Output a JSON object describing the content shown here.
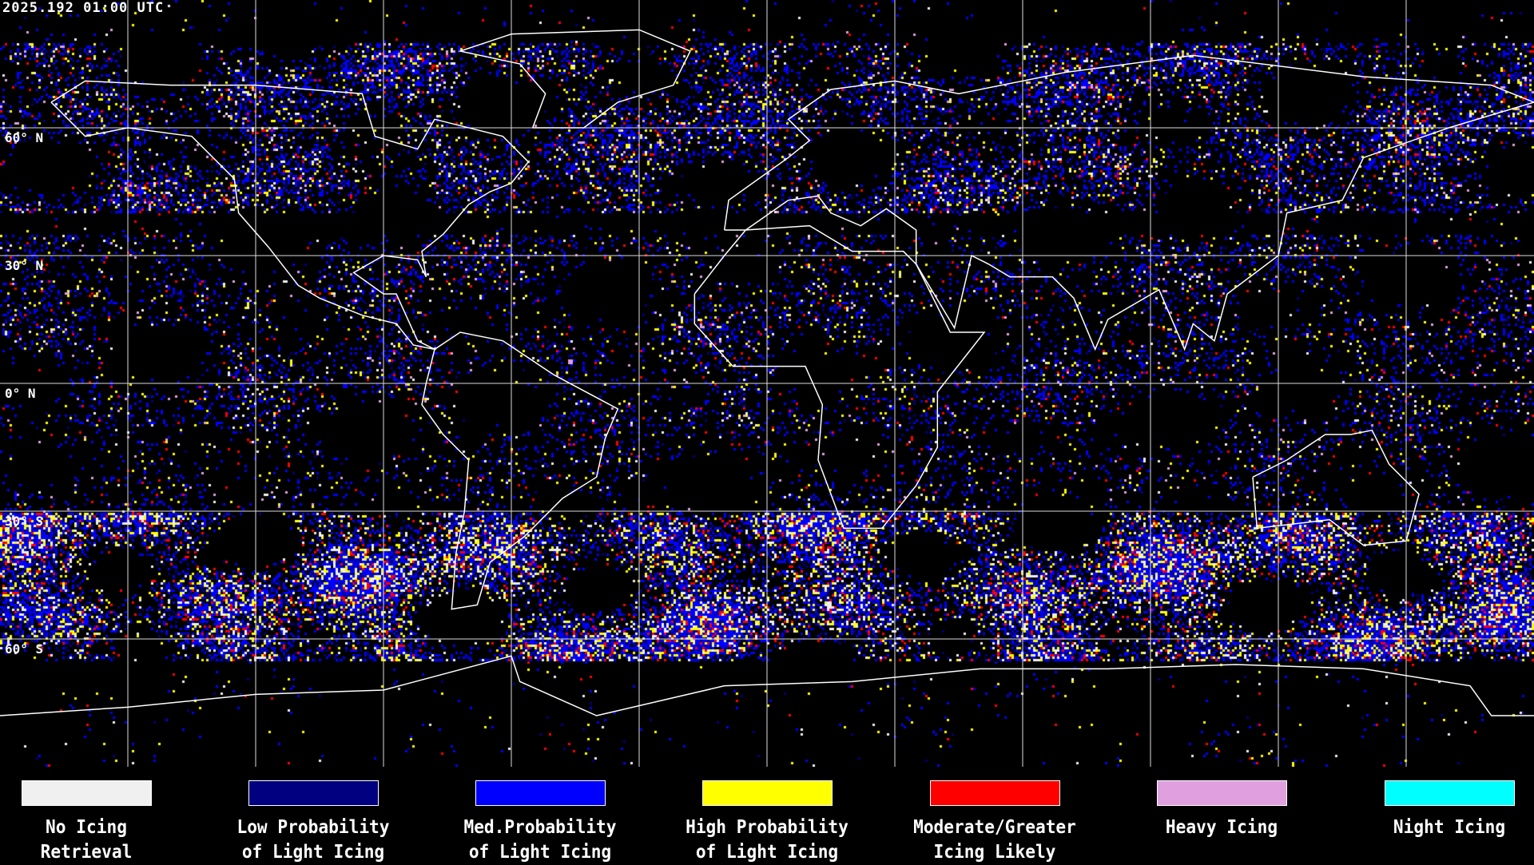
{
  "header": {
    "timestamp": "2025.192 01:00 UTC"
  },
  "map": {
    "latitude_labels": [
      "60° N",
      "30° N",
      "0° N",
      "30° S",
      "60° S"
    ],
    "grid": "on",
    "projection": "equirectangular",
    "background": "#000000",
    "coastline_color": "#ffffff"
  },
  "legend": {
    "items": [
      {
        "line1": "No Icing",
        "line2": "Retrieval",
        "color": "#f0f0f0"
      },
      {
        "line1": "Low Probability",
        "line2": "of Light Icing",
        "color": "#000080"
      },
      {
        "line1": "Med.Probability",
        "line2": "of Light Icing",
        "color": "#0000ff"
      },
      {
        "line1": "High Probability",
        "line2": "of Light Icing",
        "color": "#ffff00"
      },
      {
        "line1": "Moderate/Greater",
        "line2": "Icing Likely",
        "color": "#ff0000"
      },
      {
        "line1": "Heavy Icing",
        "line2": "",
        "color": "#e0a0e0"
      },
      {
        "line1": "Night Icing",
        "line2": "",
        "color": "#00ffff"
      }
    ]
  }
}
